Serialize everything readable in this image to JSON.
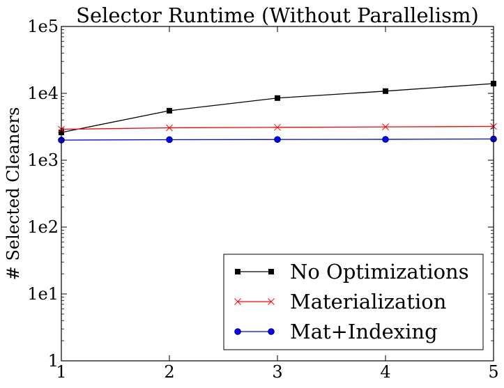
{
  "chart_data": {
    "type": "line",
    "title": "Selector Runtime (Without Parallelism)",
    "xlabel": "",
    "ylabel": "# Selected Cleaners",
    "xlim": [
      1,
      5
    ],
    "ylim": [
      1,
      100000
    ],
    "yscale": "log",
    "grid": false,
    "legend_position": "bottom-right",
    "x": [
      1,
      2,
      3,
      4,
      5
    ],
    "x_tick_labels": [
      "1",
      "2",
      "3",
      "4",
      "5"
    ],
    "y_ticks": [
      1,
      10,
      100,
      1000,
      10000,
      100000
    ],
    "y_tick_labels": [
      "1",
      "1e1",
      "1e2",
      "1e3",
      "1e4",
      "1e5"
    ],
    "series": [
      {
        "name": "No Optimizations",
        "color": "#000000",
        "marker": "square",
        "values": [
          2600,
          5500,
          8500,
          10800,
          14000
        ]
      },
      {
        "name": "Materialization",
        "color": "#ff0000",
        "marker": "x",
        "values": [
          2900,
          3050,
          3100,
          3150,
          3200
        ]
      },
      {
        "name": "Mat+Indexing",
        "color": "#0000ff",
        "marker": "circle",
        "values": [
          2000,
          2030,
          2040,
          2050,
          2080
        ]
      }
    ]
  }
}
